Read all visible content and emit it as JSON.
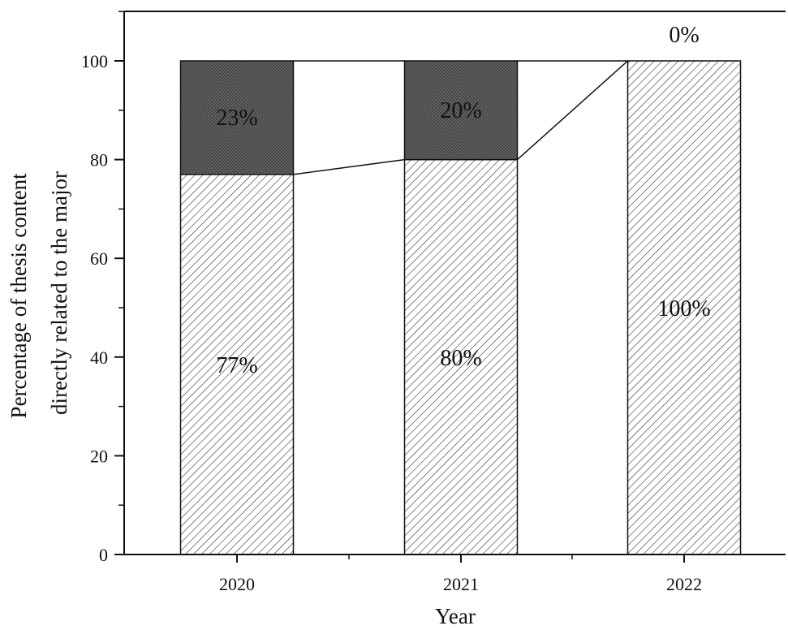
{
  "chart_data": {
    "type": "bar",
    "stacked": true,
    "categories": [
      "2020",
      "2021",
      "2022"
    ],
    "series": [
      {
        "values": [
          77,
          80,
          100
        ],
        "labels": [
          "77%",
          "80%",
          "100%"
        ],
        "pattern": "diagonal-hatch",
        "color": "#ffffff"
      },
      {
        "values": [
          23,
          20,
          0
        ],
        "labels": [
          "23%",
          "20%",
          "0%"
        ],
        "pattern": "dark-crosshatch",
        "color": "#5a5a5a"
      }
    ],
    "connector_lines": true,
    "xlabel": "Year",
    "ylabel": [
      "Percentage of thesis content",
      "directly related to the major"
    ],
    "ylim": [
      0,
      110
    ],
    "yticks": [
      0,
      20,
      40,
      60,
      80,
      100
    ],
    "grid": false
  }
}
